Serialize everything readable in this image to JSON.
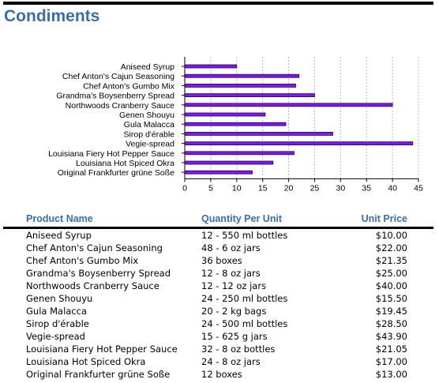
{
  "page": {
    "title": "Condiments"
  },
  "colors": {
    "bar_fill": "#7a1fd6",
    "bar_edge": "#2a0060",
    "title": "#3a6ea5",
    "grid": "#b8b8b8"
  },
  "chart_data": {
    "type": "bar",
    "orientation": "horizontal",
    "categories": [
      "Aniseed Syrup",
      "Chef Anton's Cajun Seasoning",
      "Chef Anton's Gumbo Mix",
      "Grandma's Boysenberry Spread",
      "Northwoods Cranberry Sauce",
      "Genen Shouyu",
      "Gula Malacca",
      "Sirop d'érable",
      "Vegie-spread",
      "Louisiana Fiery Hot Pepper Sauce",
      "Louisiana Hot Spiced Okra",
      "Original Frankfurter grüne Soße"
    ],
    "values": [
      10,
      22,
      21.35,
      25,
      40,
      15.5,
      19.45,
      28.5,
      43.9,
      21.05,
      17,
      13
    ],
    "xlim": [
      0,
      45
    ],
    "xticks": [
      "0",
      "5",
      "10",
      "15",
      "20",
      "25",
      "30",
      "35",
      "40",
      "45"
    ],
    "grid": "vertical dashed"
  },
  "table": {
    "headers": {
      "name": "Product Name",
      "qty": "Quantity Per Unit",
      "price": "Unit Price"
    },
    "rows": [
      {
        "name": "Aniseed Syrup",
        "qty": "12 - 550 ml bottles",
        "price": "$10.00"
      },
      {
        "name": "Chef Anton's Cajun Seasoning",
        "qty": "48 - 6 oz jars",
        "price": "$22.00"
      },
      {
        "name": "Chef Anton's Gumbo Mix",
        "qty": "36 boxes",
        "price": "$21.35"
      },
      {
        "name": "Grandma's Boysenberry Spread",
        "qty": "12 - 8 oz jars",
        "price": "$25.00"
      },
      {
        "name": "Northwoods Cranberry Sauce",
        "qty": "12 - 12 oz jars",
        "price": "$40.00"
      },
      {
        "name": "Genen Shouyu",
        "qty": "24 - 250 ml bottles",
        "price": "$15.50"
      },
      {
        "name": "Gula Malacca",
        "qty": "20 - 2 kg bags",
        "price": "$19.45"
      },
      {
        "name": "Sirop d'érable",
        "qty": "24 - 500 ml bottles",
        "price": "$28.50"
      },
      {
        "name": "Vegie-spread",
        "qty": "15 - 625 g jars",
        "price": "$43.90"
      },
      {
        "name": "Louisiana Fiery Hot Pepper Sauce",
        "qty": "32 - 8 oz bottles",
        "price": "$21.05"
      },
      {
        "name": "Louisiana Hot Spiced Okra",
        "qty": "24 - 8 oz jars",
        "price": "$17.00"
      },
      {
        "name": "Original Frankfurter grüne Soße",
        "qty": "12 boxes",
        "price": "$13.00"
      }
    ]
  }
}
